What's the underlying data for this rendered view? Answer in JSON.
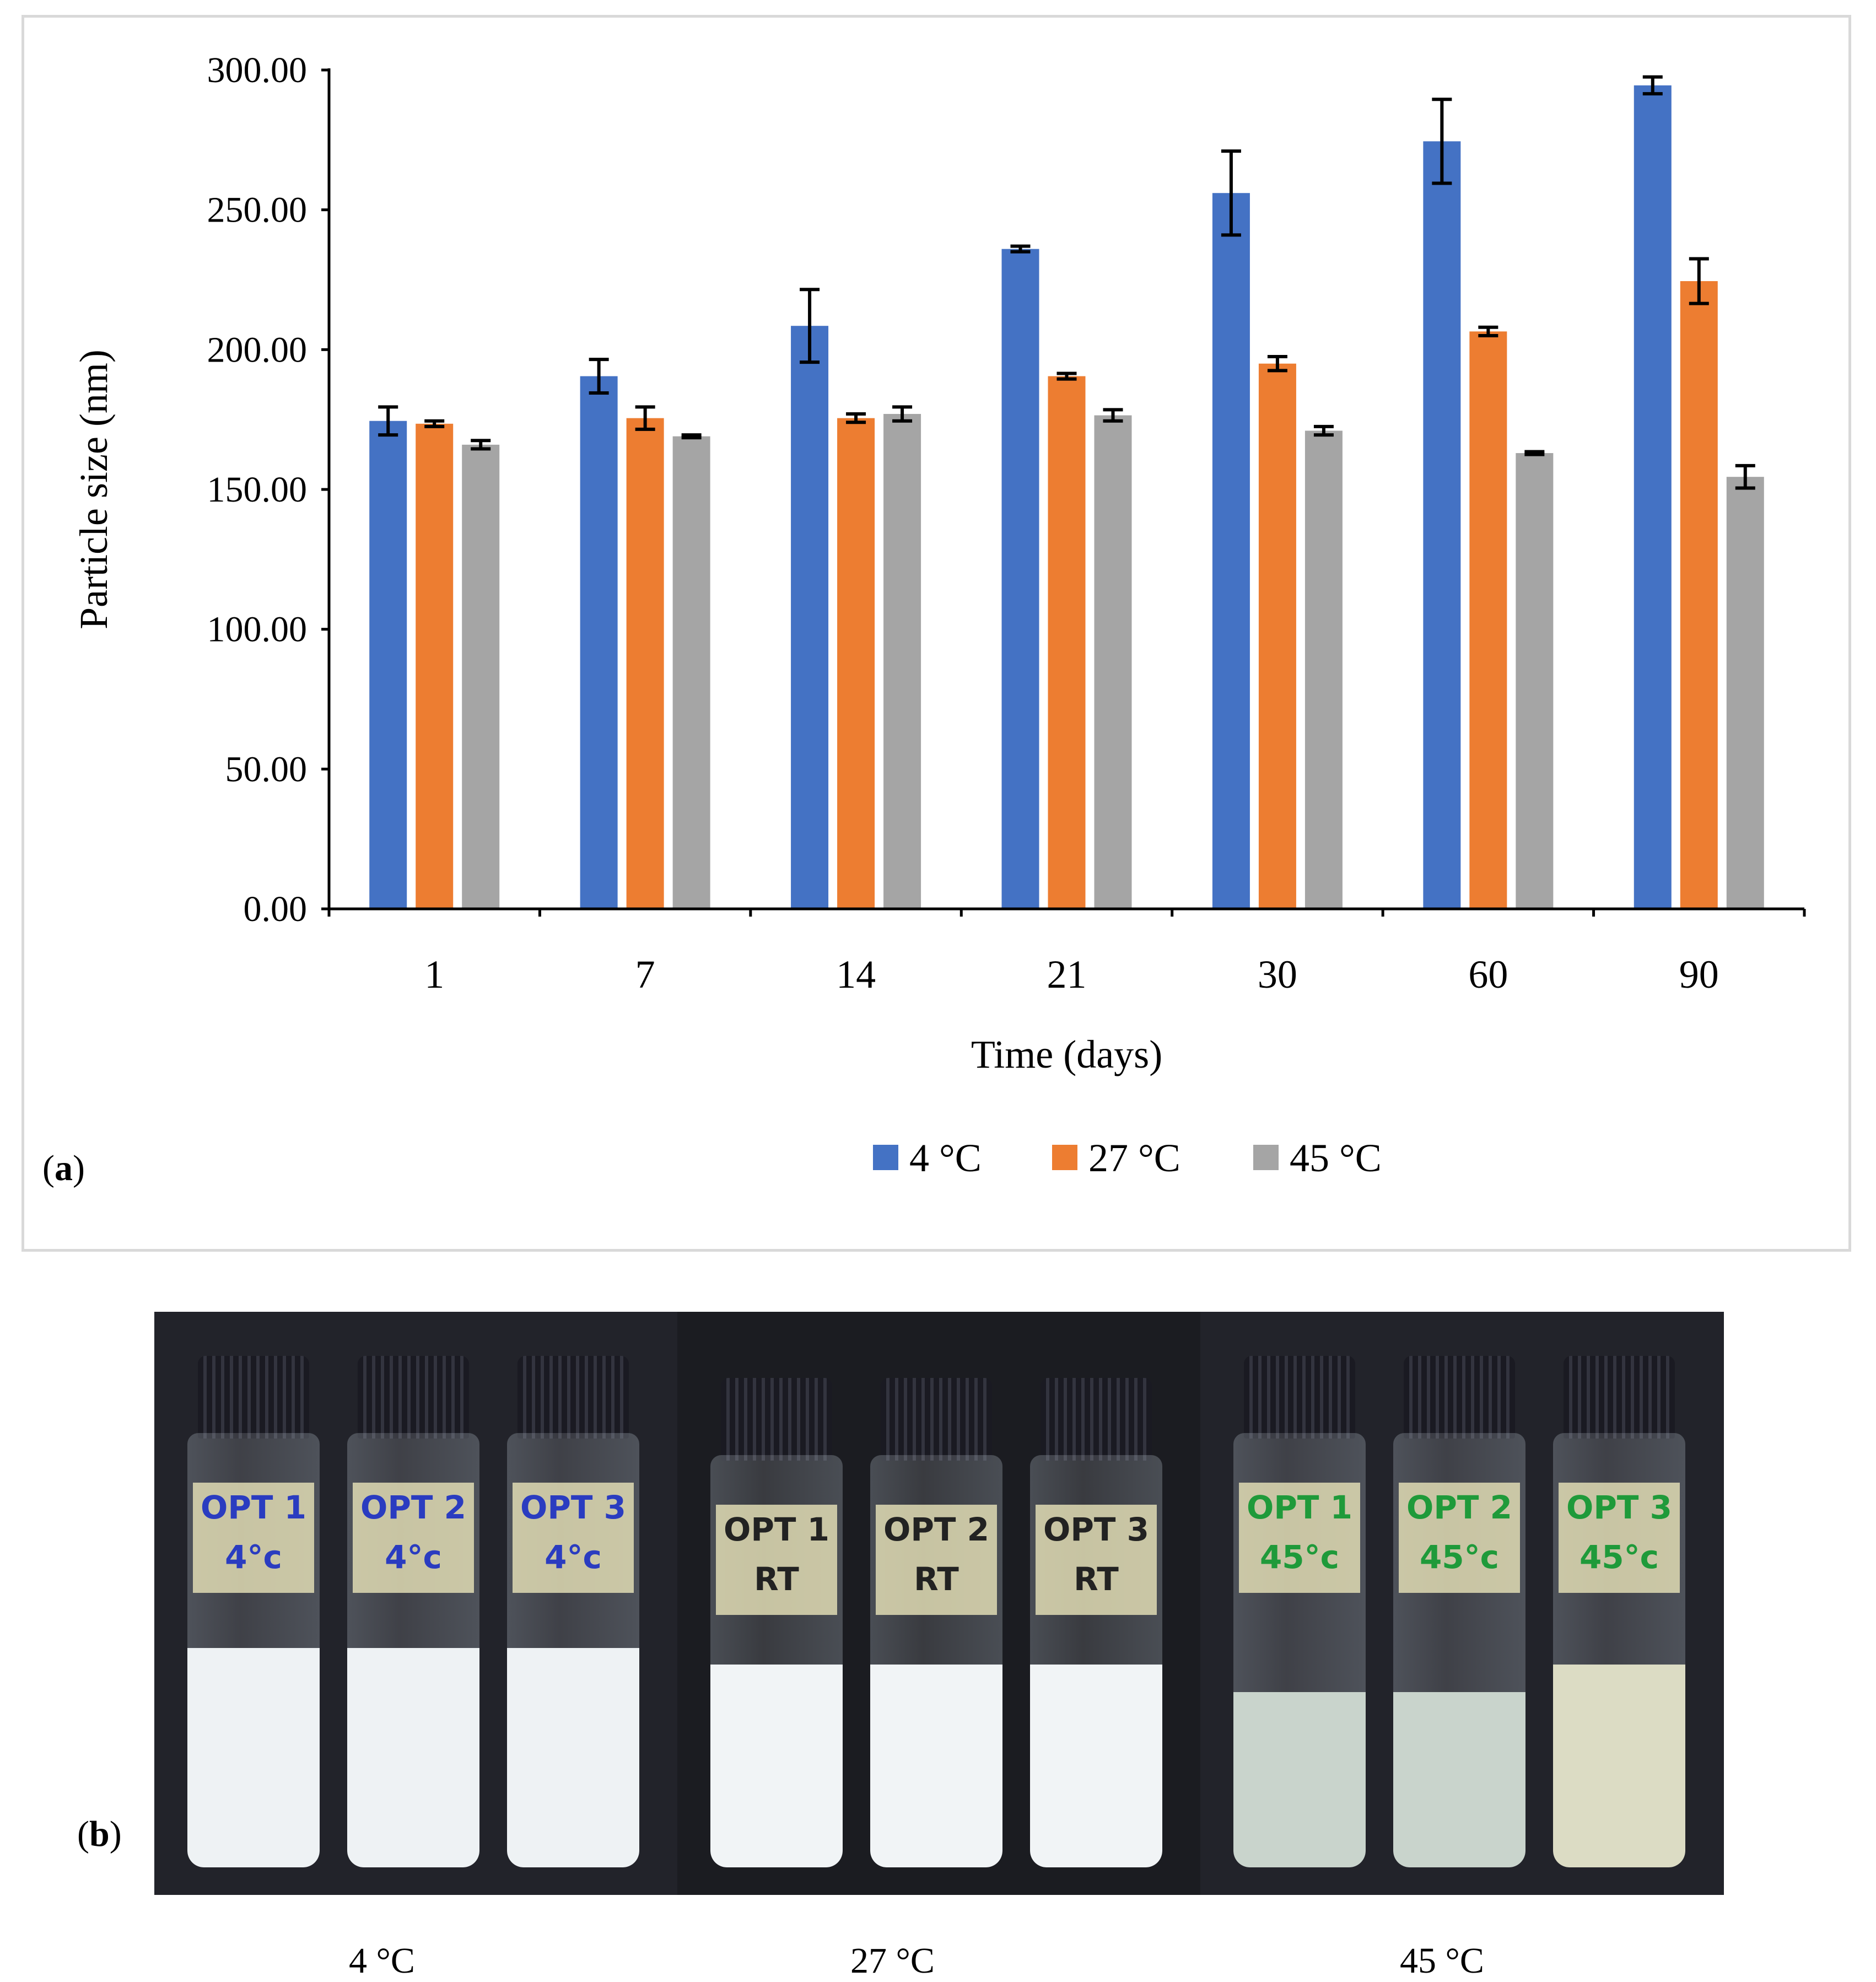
{
  "chart_data": {
    "type": "bar",
    "panel_label": "a",
    "categories": [
      "1",
      "7",
      "14",
      "21",
      "30",
      "60",
      "90"
    ],
    "xlabel": "Time (days)",
    "ylabel": "Particle size (nm)",
    "ylim": [
      0,
      300
    ],
    "yticks": [
      "0.00",
      "50.00",
      "100.00",
      "150.00",
      "200.00",
      "250.00",
      "300.00"
    ],
    "legend_position": "bottom",
    "series": [
      {
        "name": "4 °C",
        "color": "#4472c4",
        "values": [
          174.5,
          190.5,
          208.5,
          236,
          256,
          274.5,
          294.5
        ],
        "errors": [
          5,
          6,
          13,
          1,
          15,
          15,
          3
        ]
      },
      {
        "name": "27 °C",
        "color": "#ed7d31",
        "values": [
          173.5,
          175.5,
          175.5,
          190.5,
          195,
          206.5,
          224.5
        ],
        "errors": [
          1,
          4,
          1.5,
          1,
          2.5,
          1.5,
          8
        ]
      },
      {
        "name": "45 °C",
        "color": "#a5a5a5",
        "values": [
          166,
          169,
          177,
          176.5,
          171,
          163,
          154.5
        ],
        "errors": [
          1.5,
          0.5,
          2.5,
          2,
          1.5,
          0.5,
          4
        ]
      }
    ]
  },
  "photo": {
    "panel_label": "b",
    "captions": [
      "4 °C",
      "27 °C",
      "45 °C"
    ],
    "groups": [
      {
        "labels": [
          [
            "OPT 1",
            "4°c"
          ],
          [
            "OPT 2",
            "4°c"
          ],
          [
            "OPT 3",
            "4°c"
          ]
        ],
        "ink": "#2a3cc0",
        "liquid": "#eef2f4"
      },
      {
        "labels": [
          [
            "OPT 1",
            "RT"
          ],
          [
            "OPT 2",
            "RT"
          ],
          [
            "OPT 3",
            "RT"
          ]
        ],
        "ink": "#222222",
        "liquid": "#f1f4f6"
      },
      {
        "labels": [
          [
            "OPT 1",
            "45°c"
          ],
          [
            "OPT 2",
            "45°c"
          ],
          [
            "OPT 3",
            "45°c"
          ]
        ],
        "ink": "#1f9a3a",
        "liquid": "#c9d4cc"
      }
    ]
  }
}
